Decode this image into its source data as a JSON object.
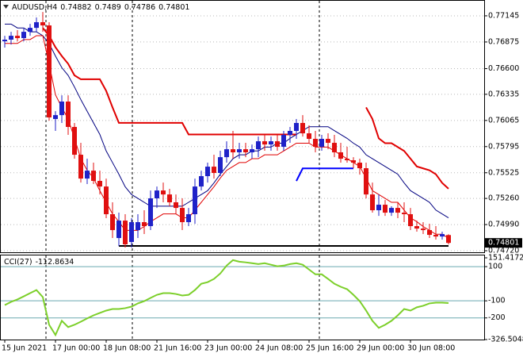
{
  "chart_data": [
    {
      "type": "candlestick",
      "title": "AUDUSD,H4",
      "categories": [
        "15 Jun 2021",
        null,
        null,
        null,
        null,
        null,
        null,
        null,
        "17 Jun 00:00",
        null,
        null,
        null,
        null,
        null,
        null,
        null,
        "18 Jun 08:00",
        null,
        null,
        null,
        null,
        null,
        null,
        null,
        "21 Jun 16:00",
        null,
        null,
        null,
        null,
        null,
        null,
        null,
        "23 Jun 00:00",
        null,
        null,
        null,
        null,
        null,
        null,
        null,
        "24 Jun 08:00",
        null,
        null,
        null,
        null,
        null,
        null,
        null,
        "25 Jun 16:00",
        null,
        null,
        null,
        null,
        null,
        null,
        null,
        "29 Jun 00:00",
        null,
        null,
        null,
        null,
        null,
        null,
        null,
        "30 Jun 08:00",
        null,
        null,
        null,
        null,
        null,
        null
      ],
      "open": [
        0.76882,
        0.76899,
        0.76939,
        0.76915,
        0.7698,
        0.77021,
        0.77079,
        0.77046,
        0.7608,
        0.7612,
        0.7626,
        0.75998,
        0.75711,
        0.75465,
        0.75547,
        0.75441,
        0.75383,
        0.75097,
        0.74851,
        0.75031,
        0.7481,
        0.74933,
        0.75015,
        0.74974,
        0.75261,
        0.75342,
        0.75301,
        0.7522,
        0.75162,
        0.75015,
        0.75097,
        0.75383,
        0.7549,
        0.75588,
        0.75523,
        0.75686,
        0.75768,
        0.75736,
        0.75768,
        0.75736,
        0.75768,
        0.7585,
        0.75817,
        0.7585,
        0.75793,
        0.75916,
        0.75957,
        0.76039,
        0.75932,
        0.75875,
        0.75793,
        0.75875,
        0.75834,
        0.75736,
        0.7567,
        0.75654,
        0.75629,
        0.75572,
        0.75301,
        0.75138,
        0.75195,
        0.75113,
        0.75162,
        0.75113,
        0.75097,
        0.74974,
        0.74949,
        0.74933,
        0.74884,
        0.74867,
        0.74882
      ],
      "high": [
        0.76939,
        0.7698,
        0.76997,
        0.77021,
        0.77062,
        0.77128,
        0.77185,
        0.77079,
        0.76161,
        0.76325,
        0.76325,
        0.76039,
        0.75834,
        0.7567,
        0.75629,
        0.75547,
        0.75465,
        0.7522,
        0.75113,
        0.75097,
        0.75056,
        0.75097,
        0.75138,
        0.75342,
        0.75383,
        0.75424,
        0.75359,
        0.75301,
        0.75261,
        0.75162,
        0.75465,
        0.75547,
        0.75629,
        0.75711,
        0.75752,
        0.7585,
        0.75957,
        0.75834,
        0.75834,
        0.75817,
        0.75899,
        0.75916,
        0.75899,
        0.75916,
        0.75957,
        0.75998,
        0.7608,
        0.7612,
        0.76014,
        0.75957,
        0.75916,
        0.75932,
        0.75916,
        0.75834,
        0.75793,
        0.75686,
        0.7567,
        0.75629,
        0.75424,
        0.75301,
        0.75244,
        0.75179,
        0.7522,
        0.7522,
        0.75162,
        0.75031,
        0.75015,
        0.74998,
        0.74974,
        0.74917,
        0.7489
      ],
      "low": [
        0.76817,
        0.76849,
        0.76882,
        0.76882,
        0.76939,
        0.7698,
        0.7698,
        0.76063,
        0.75957,
        0.76039,
        0.75916,
        0.7567,
        0.75424,
        0.75408,
        0.75408,
        0.75301,
        0.75056,
        0.74851,
        0.74769,
        0.74753,
        0.74753,
        0.74851,
        0.74892,
        0.74933,
        0.75162,
        0.7522,
        0.75179,
        0.75097,
        0.74933,
        0.74974,
        0.74998,
        0.75342,
        0.75424,
        0.75465,
        0.7549,
        0.75629,
        0.7567,
        0.7567,
        0.75686,
        0.7567,
        0.75686,
        0.75752,
        0.75752,
        0.75752,
        0.75752,
        0.75834,
        0.75875,
        0.75899,
        0.75834,
        0.75736,
        0.75752,
        0.75768,
        0.75686,
        0.75629,
        0.75629,
        0.75572,
        0.75506,
        0.75261,
        0.75113,
        0.7508,
        0.7508,
        0.7508,
        0.75056,
        0.75015,
        0.74933,
        0.74917,
        0.74892,
        0.74851,
        0.74835,
        0.74835,
        0.74786
      ],
      "close": [
        0.76899,
        0.76939,
        0.76915,
        0.7698,
        0.77021,
        0.77079,
        0.77046,
        0.76096,
        0.7612,
        0.7626,
        0.75998,
        0.75711,
        0.75465,
        0.75547,
        0.75441,
        0.75383,
        0.75097,
        0.74933,
        0.75031,
        0.74786,
        0.75015,
        0.75015,
        0.74974,
        0.75261,
        0.75342,
        0.75301,
        0.7522,
        0.75162,
        0.75015,
        0.75097,
        0.75383,
        0.7549,
        0.75588,
        0.75523,
        0.75686,
        0.75768,
        0.75736,
        0.75768,
        0.75736,
        0.75768,
        0.7585,
        0.75817,
        0.7585,
        0.75793,
        0.75916,
        0.75957,
        0.76039,
        0.75932,
        0.75875,
        0.75793,
        0.75875,
        0.75834,
        0.75736,
        0.7567,
        0.75654,
        0.75629,
        0.75572,
        0.75301,
        0.75138,
        0.75195,
        0.75113,
        0.75162,
        0.75113,
        0.75097,
        0.74974,
        0.74949,
        0.74933,
        0.74884,
        0.74867,
        0.74892,
        0.74801
      ],
      "up_color": "#1f22c8",
      "down_color": "#e01010",
      "series": [
        {
          "color": "#000080",
          "width": 1,
          "values": [
            0.7706,
            0.7706,
            0.7702,
            0.7702,
            0.7698,
            0.7698,
            0.7694,
            0.7686,
            0.7673,
            0.7661,
            0.7653,
            0.7641,
            0.7628,
            0.7616,
            0.7604,
            0.7592,
            0.7575,
            0.7563,
            0.7551,
            0.7538,
            0.753,
            0.7526,
            0.7522,
            0.7518,
            0.7518,
            0.7518,
            0.7518,
            0.7518,
            0.7518,
            0.7522,
            0.7526,
            0.753,
            0.7534,
            0.7542,
            0.7551,
            0.7559,
            0.7567,
            0.7571,
            0.7571,
            0.7575,
            0.7575,
            0.7579,
            0.7579,
            0.7583,
            0.7583,
            0.7588,
            0.7592,
            0.7596,
            0.76,
            0.76,
            0.76,
            0.76,
            0.7596,
            0.7592,
            0.7588,
            0.7583,
            0.7579,
            0.7571,
            0.7567,
            0.7563,
            0.7559,
            0.7555,
            0.7551,
            0.7542,
            0.7534,
            0.753,
            0.7526,
            0.7522,
            0.7514,
            0.751,
            0.7506
          ]
        },
        {
          "color": "#e00000",
          "width": 1,
          "values": [
            0.7686,
            0.7686,
            0.7686,
            0.769,
            0.769,
            0.7694,
            0.7694,
            0.7665,
            0.7633,
            0.762,
            0.7608,
            0.7588,
            0.7567,
            0.7555,
            0.7547,
            0.7534,
            0.7522,
            0.751,
            0.7502,
            0.7493,
            0.7493,
            0.7493,
            0.7497,
            0.7502,
            0.7506,
            0.751,
            0.751,
            0.751,
            0.7506,
            0.7506,
            0.7514,
            0.7522,
            0.753,
            0.7538,
            0.7547,
            0.7555,
            0.7559,
            0.7563,
            0.7563,
            0.7567,
            0.7567,
            0.7571,
            0.7571,
            0.7571,
            0.7575,
            0.7579,
            0.7583,
            0.7583,
            0.7583,
            0.7579,
            0.7579,
            0.7579,
            0.7575,
            0.7571,
            0.7567,
            0.7563,
            0.7559,
            0.7547,
            0.7534,
            0.753,
            0.7526,
            0.7522,
            0.7522,
            0.7514,
            0.7506,
            0.7502,
            0.7497,
            0.7493,
            0.7489,
            0.7489,
            0.7485
          ]
        },
        {
          "color": "#e00000",
          "width": 2,
          "values": [
            null,
            null,
            null,
            null,
            null,
            null,
            0.7702,
            0.7694,
            0.7682,
            0.7673,
            0.7665,
            0.7653,
            0.7649,
            0.7649,
            0.7649,
            0.7649,
            0.7637,
            0.762,
            0.7604,
            0.7604,
            0.7604,
            0.7604,
            0.7604,
            0.7604,
            0.7604,
            0.7604,
            0.7604,
            0.7604,
            0.7604,
            0.7592,
            0.7592,
            0.7592,
            0.7592,
            0.7592,
            0.7592,
            0.7592,
            0.7592,
            0.7592,
            0.7592,
            0.7592,
            0.7592,
            0.7592,
            0.7592,
            0.7592,
            0.7592,
            0.7592,
            0.7592,
            null,
            null,
            null,
            null,
            null,
            null,
            null,
            null,
            null,
            null,
            0.762,
            0.7608,
            0.7588,
            0.7583,
            0.7583,
            0.7579,
            0.7575,
            0.7567,
            0.7559,
            0.7557,
            0.7555,
            0.7551,
            0.7542,
            0.7536
          ]
        },
        {
          "color": "#0000ff",
          "width": 2,
          "values": [
            null,
            null,
            null,
            null,
            null,
            null,
            null,
            null,
            null,
            null,
            null,
            null,
            null,
            null,
            null,
            null,
            null,
            null,
            null,
            null,
            null,
            null,
            null,
            null,
            null,
            null,
            null,
            null,
            null,
            null,
            null,
            null,
            null,
            null,
            null,
            null,
            null,
            null,
            null,
            null,
            null,
            null,
            null,
            null,
            null,
            null,
            0.7544,
            0.7557,
            0.7557,
            0.7557,
            0.7557,
            0.7557,
            0.7557,
            0.7557,
            0.7557,
            0.7557,
            null,
            null,
            null,
            null,
            null,
            null,
            null,
            null,
            null,
            null,
            null,
            null,
            null,
            null,
            null
          ]
        },
        {
          "color": "#000000",
          "width": 2,
          "values": [
            null,
            null,
            null,
            null,
            null,
            null,
            null,
            null,
            null,
            null,
            null,
            null,
            null,
            null,
            null,
            null,
            null,
            null,
            0.7477,
            0.7477,
            0.7477,
            0.7477,
            0.7477,
            0.7477,
            0.7477,
            0.7477,
            0.7477,
            0.7477,
            0.7477,
            0.7477,
            0.7477,
            0.7477,
            0.7477,
            0.7477,
            0.7477,
            0.7477,
            0.7477,
            0.7477,
            0.7477,
            0.7477,
            0.7477,
            0.7477,
            0.7477,
            0.7477,
            0.7477,
            0.7477,
            0.7477,
            0.7477,
            0.7477,
            0.7477,
            0.7477,
            0.7477,
            0.7477,
            0.7477,
            0.7477,
            0.7477,
            0.7477,
            0.7477,
            0.7477,
            0.7477,
            0.7477,
            0.7477,
            0.7477,
            0.7477,
            0.7477,
            0.7477,
            0.7477,
            0.7477,
            0.7477,
            0.7477,
            0.7477
          ]
        }
      ],
      "ylim": [
        0.74704,
        0.77292
      ],
      "yticks": [
        0.77145,
        0.76875,
        {
          "value": 0.766,
          "label": "0.76600"
        },
        0.76335,
        0.76065,
        0.75795,
        0.75525,
        {
          "value": 0.7526,
          "label": "0.75260"
        },
        {
          "value": 0.7499,
          "label": "0.74990"
        },
        {
          "value": 0.7472,
          "label": "0.74720"
        }
      ],
      "grid": true
    },
    {
      "type": "line",
      "title": "CCI(27)",
      "series": [
        {
          "color": "#7ccf2a",
          "width": 2,
          "values": [
            -125,
            -106,
            -92,
            -74,
            -55,
            -37,
            -78,
            -240,
            -300,
            -217,
            -254,
            -240,
            -222,
            -203,
            -185,
            -171,
            -157,
            -148,
            -148,
            -143,
            -134,
            -115,
            -102,
            -83,
            -65,
            -55,
            -55,
            -60,
            -69,
            -65,
            -37,
            0,
            9,
            28,
            60,
            106,
            138,
            129,
            125,
            120,
            115,
            120,
            111,
            102,
            106,
            115,
            120,
            111,
            83,
            55,
            55,
            28,
            0,
            -18,
            -32,
            -65,
            -102,
            -157,
            -217,
            -258,
            -240,
            -217,
            -185,
            -148,
            -157,
            -138,
            -129,
            -115,
            -111,
            -111,
            -112.8634
          ]
        }
      ],
      "ylim": [
        -326.5048,
        151.4172
      ],
      "yticks": [
        151.4172,
        100,
        -100,
        -200,
        -326.5048
      ],
      "level_color": "#6aa9b0"
    }
  ]
}
